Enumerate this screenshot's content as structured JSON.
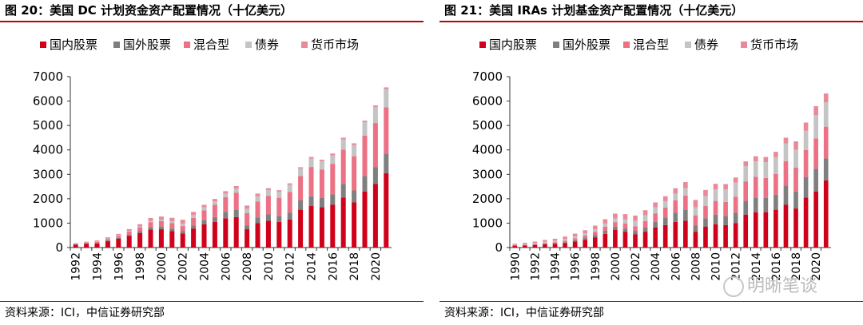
{
  "chart_data": [
    {
      "type": "bar",
      "title": "图 20：美国 DC 计划资金资产配置情况（十亿美元）",
      "source": "资料来源：ICI，中信证券研究部",
      "ylim": [
        0,
        7000
      ],
      "yticks": [
        0,
        1000,
        2000,
        3000,
        4000,
        5000,
        6000,
        7000
      ],
      "legend_position": "top",
      "categories": [
        "1992",
        "1993",
        "1994",
        "1995",
        "1996",
        "1997",
        "1998",
        "1999",
        "2000",
        "2001",
        "2002",
        "2003",
        "2004",
        "2005",
        "2006",
        "2007",
        "2008",
        "2009",
        "2010",
        "2011",
        "2012",
        "2013",
        "2014",
        "2015",
        "2016",
        "2017",
        "2018",
        "2019",
        "2020",
        "2021"
      ],
      "xtick_labels": [
        "1992",
        "",
        "1994",
        "",
        "1996",
        "",
        "1998",
        "",
        "2000",
        "",
        "2002",
        "",
        "2004",
        "",
        "2006",
        "",
        "2008",
        "",
        "2010",
        "",
        "2012",
        "",
        "2014",
        "",
        "2016",
        "",
        "2018",
        "",
        "2020",
        ""
      ],
      "series": [
        {
          "name": "国内股票",
          "color": "#d0021b",
          "values": [
            120,
            150,
            170,
            260,
            360,
            480,
            600,
            740,
            750,
            680,
            580,
            780,
            950,
            1050,
            1200,
            1250,
            750,
            1000,
            1100,
            1050,
            1150,
            1550,
            1700,
            1650,
            1750,
            2050,
            1850,
            2300,
            2600,
            3050
          ]
        },
        {
          "name": "国外股票",
          "color": "#7f7f7f",
          "values": [
            10,
            15,
            20,
            30,
            40,
            50,
            70,
            100,
            110,
            100,
            90,
            130,
            170,
            200,
            260,
            300,
            160,
            230,
            260,
            240,
            280,
            380,
            400,
            390,
            430,
            560,
            490,
            630,
            700,
            790
          ]
        },
        {
          "name": "混合型",
          "color": "#ec7184",
          "values": [
            20,
            30,
            40,
            60,
            80,
            120,
            150,
            200,
            220,
            220,
            210,
            300,
            400,
            500,
            600,
            700,
            500,
            650,
            750,
            750,
            850,
            1000,
            1200,
            1150,
            1250,
            1400,
            1400,
            1650,
            1800,
            1900
          ]
        },
        {
          "name": "债券",
          "color": "#c4c4c4",
          "values": [
            10,
            15,
            20,
            25,
            30,
            35,
            45,
            50,
            60,
            80,
            100,
            120,
            130,
            140,
            150,
            170,
            180,
            220,
            240,
            250,
            290,
            300,
            340,
            350,
            350,
            420,
            460,
            560,
            650,
            750
          ]
        },
        {
          "name": "货币市场",
          "color": "#e98a9a",
          "values": [
            20,
            30,
            40,
            45,
            50,
            70,
            90,
            120,
            130,
            140,
            160,
            130,
            100,
            100,
            100,
            100,
            130,
            110,
            80,
            60,
            60,
            60,
            70,
            60,
            70,
            70,
            70,
            60,
            70,
            70
          ]
        }
      ]
    },
    {
      "type": "bar",
      "title": "图 21：美国 IRAs 计划基金资产配置情况（十亿美元）",
      "source": "资料来源：ICI，中信证券研究部",
      "ylim": [
        0,
        7000
      ],
      "yticks": [
        0,
        1000,
        2000,
        3000,
        4000,
        5000,
        6000,
        7000
      ],
      "legend_position": "top",
      "categories": [
        "1990",
        "1991",
        "1992",
        "1993",
        "1994",
        "1995",
        "1996",
        "1997",
        "1998",
        "1999",
        "2000",
        "2001",
        "2002",
        "2003",
        "2004",
        "2005",
        "2006",
        "2007",
        "2008",
        "2009",
        "2010",
        "2011",
        "2012",
        "2013",
        "2014",
        "2015",
        "2016",
        "2017",
        "2018",
        "2019",
        "2020",
        "2021"
      ],
      "xtick_labels": [
        "1990",
        "",
        "1992",
        "",
        "1994",
        "",
        "1996",
        "",
        "1998",
        "",
        "2000",
        "",
        "2002",
        "",
        "2004",
        "",
        "2006",
        "",
        "2008",
        "",
        "2010",
        "",
        "2012",
        "",
        "2014",
        "",
        "2016",
        "",
        "2018",
        "",
        "2020",
        ""
      ],
      "series": [
        {
          "name": "国内股票",
          "color": "#d0021b",
          "values": [
            80,
            90,
            110,
            130,
            150,
            180,
            250,
            320,
            420,
            560,
            720,
            650,
            550,
            650,
            820,
            920,
            1050,
            1100,
            650,
            850,
            950,
            920,
            1000,
            1350,
            1450,
            1450,
            1550,
            1750,
            1600,
            2050,
            2300,
            2750
          ]
        },
        {
          "name": "国外股票",
          "color": "#7f7f7f",
          "values": [
            5,
            10,
            15,
            20,
            30,
            40,
            50,
            70,
            90,
            130,
            140,
            130,
            120,
            170,
            230,
            290,
            380,
            450,
            250,
            350,
            400,
            370,
            430,
            560,
            600,
            580,
            620,
            790,
            700,
            840,
            920,
            900
          ]
        },
        {
          "name": "混合型",
          "color": "#ec7184",
          "values": [
            10,
            15,
            20,
            30,
            40,
            60,
            80,
            100,
            130,
            160,
            180,
            200,
            200,
            260,
            350,
            430,
            500,
            580,
            420,
            500,
            560,
            580,
            650,
            800,
            850,
            820,
            850,
            1000,
            980,
            1100,
            1250,
            1300
          ]
        },
        {
          "name": "债券",
          "color": "#c4c4c4",
          "values": [
            20,
            30,
            40,
            60,
            60,
            70,
            80,
            90,
            110,
            130,
            150,
            170,
            220,
            240,
            250,
            260,
            280,
            300,
            330,
            400,
            470,
            510,
            580,
            620,
            630,
            650,
            680,
            720,
            720,
            800,
            950,
            1000
          ]
        },
        {
          "name": "货币市场",
          "color": "#e98a9a",
          "values": [
            40,
            50,
            60,
            70,
            80,
            100,
            110,
            130,
            150,
            180,
            200,
            220,
            220,
            210,
            200,
            200,
            220,
            250,
            300,
            260,
            230,
            220,
            210,
            200,
            210,
            210,
            220,
            240,
            350,
            330,
            370,
            360
          ]
        }
      ]
    }
  ],
  "watermark": "明晰笔谈"
}
